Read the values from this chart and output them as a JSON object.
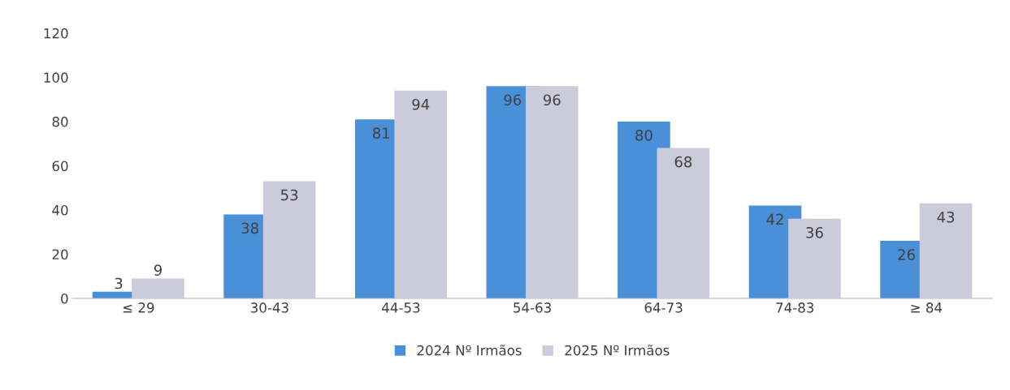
{
  "chart_data": {
    "type": "bar",
    "categories": [
      "≤ 29",
      "30-43",
      "44-53",
      "54-63",
      "64-73",
      "74-83",
      "≥ 84"
    ],
    "series": [
      {
        "name": "2024 Nº Irmãos",
        "color": "#4a90d9",
        "values": [
          3,
          38,
          81,
          96,
          80,
          42,
          26
        ]
      },
      {
        "name": "2025 Nº Irmãos",
        "color": "#cbcbdc",
        "values": [
          9,
          53,
          94,
          96,
          68,
          36,
          43
        ]
      }
    ],
    "ylim": [
      0,
      120
    ],
    "yticks": [
      0,
      20,
      40,
      60,
      80,
      100,
      120
    ],
    "grid": false,
    "legend": "bottom",
    "data_labels": true
  }
}
